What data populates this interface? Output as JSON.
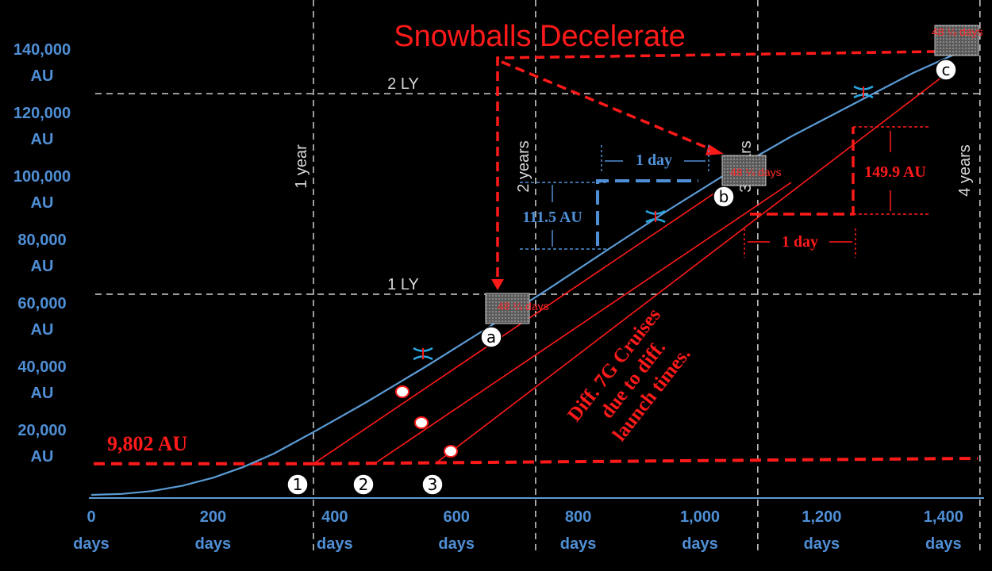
{
  "chart_data": {
    "type": "line",
    "title": "Snowballs Decelerate",
    "x_axis": {
      "range": [
        0,
        1460
      ],
      "ticks": [
        0,
        200,
        400,
        600,
        800,
        1000,
        1200,
        1400
      ],
      "tick_labels": [
        "0",
        "200",
        "400",
        "600",
        "800",
        "1,000",
        "1,200",
        "1,400"
      ],
      "unit_label": "days"
    },
    "y_axis": {
      "range": [
        0,
        140000
      ],
      "ticks": [
        20000,
        40000,
        60000,
        80000,
        100000,
        120000,
        140000
      ],
      "tick_labels": [
        "20,000",
        "40,000",
        "60,000",
        "80,000",
        "100,000",
        "120,000",
        "140,000"
      ],
      "unit_label": "AU"
    },
    "reference_lines": {
      "vertical": [
        {
          "x": 365,
          "label": "1 year"
        },
        {
          "x": 730,
          "label": "2 years"
        },
        {
          "x": 1095,
          "label": "3 years"
        },
        {
          "x": 1460,
          "label": "4 years"
        }
      ],
      "horizontal": [
        {
          "y": 63241,
          "label": "1 LY"
        },
        {
          "y": 126482,
          "label": "2 LY"
        }
      ]
    },
    "threshold": {
      "y": 9802,
      "label": "9,802 AU"
    },
    "main_curve": {
      "x": [
        0,
        50,
        100,
        150,
        200,
        250,
        300,
        365,
        450,
        550,
        650,
        750,
        850,
        950,
        1050,
        1150,
        1250,
        1350,
        1420
      ],
      "y": [
        0,
        300,
        1200,
        2900,
        5400,
        8800,
        13000,
        19800,
        29000,
        40500,
        52500,
        64800,
        77500,
        90000,
        102000,
        113000,
        123000,
        133000,
        139000
      ]
    },
    "cruise_lines": [
      {
        "label": "1",
        "x": [
          365,
          1050
        ],
        "y": [
          9802,
          98500
        ]
      },
      {
        "label": "2",
        "x": [
          465,
          1150
        ],
        "y": [
          9802,
          98500
        ]
      },
      {
        "label": "3",
        "x": [
          565,
          1420
        ],
        "y": [
          9802,
          135000
        ]
      }
    ],
    "snowballs": [
      {
        "label": "a",
        "x": 695,
        "y": 57000,
        "duration": "48 ¼ days"
      },
      {
        "label": "b",
        "x": 1055,
        "y": 100000,
        "duration": "48 ¼ days"
      },
      {
        "label": "c",
        "x": 1420,
        "y": 139000,
        "duration": "48 ¼ days"
      }
    ],
    "annotations": {
      "gap_blue": {
        "distance": "111.5 AU",
        "time": "1 day"
      },
      "gap_red": {
        "distance": "149.9 AU",
        "time": "1 day"
      },
      "diff_text": [
        "Diff. 7G Cruises",
        "due to diff.",
        "launch times."
      ]
    },
    "grid": false,
    "legend": "none"
  },
  "colors": {
    "background": "#000000",
    "curve": "#5b9bd5",
    "red": "#ff1a1a",
    "axis_text": "#4f8fd6",
    "grid": "#d0d0d0",
    "snowball": "#7a7a7a"
  }
}
